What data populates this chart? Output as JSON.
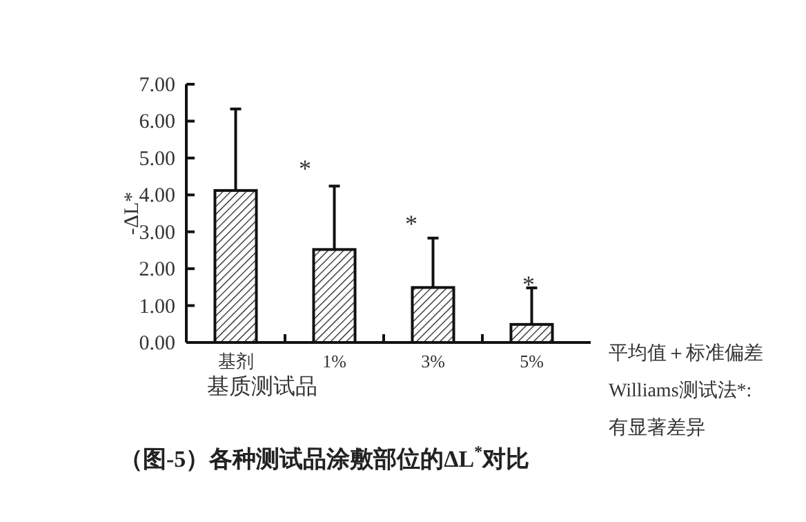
{
  "chart_data": {
    "type": "bar",
    "title": "（图-5）各种测试品涂敷部位的ΔL$^{*}$对比",
    "ylabel": "-ΔL*",
    "categories": [
      "基剂",
      "1%",
      "3%",
      "5%"
    ],
    "values": [
      4.12,
      2.52,
      1.49,
      0.49
    ],
    "errors": [
      [
        4.12,
        6.33
      ],
      [
        2.52,
        4.24
      ],
      [
        1.49,
        2.83
      ],
      [
        0.49,
        1.48
      ]
    ],
    "color": "#111111",
    "ylim": [
      0,
      7
    ],
    "yticks": [
      {
        "value": 0,
        "label": "0.00"
      },
      {
        "value": 1,
        "label": "1.00"
      },
      {
        "value": 2,
        "label": "2.00"
      },
      {
        "value": 3,
        "label": "3.00"
      },
      {
        "value": 4,
        "label": "4.00"
      },
      {
        "value": 5,
        "label": "5.00"
      },
      {
        "value": 6,
        "label": "6.00"
      },
      {
        "value": 7,
        "label": "7.00"
      }
    ],
    "grid": false,
    "annotations": [
      "*",
      "*",
      "*",
      "基质测试品",
      "平均值＋标准偏差",
      "Williams测试法*:",
      "有显著差异"
    ]
  }
}
